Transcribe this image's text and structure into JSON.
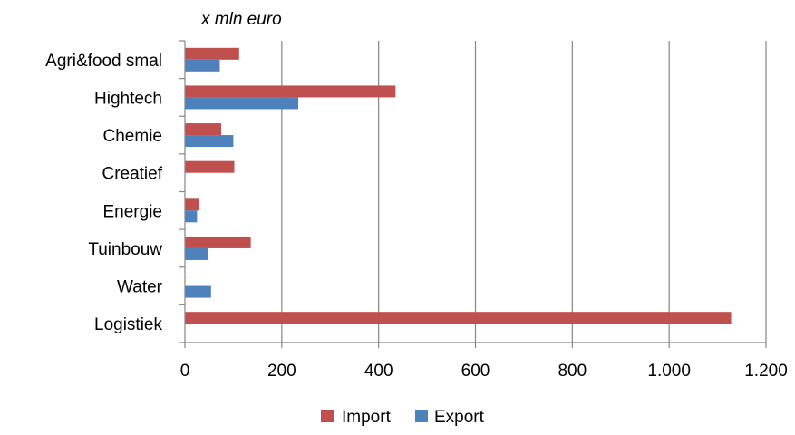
{
  "chart_data": {
    "type": "bar",
    "orientation": "horizontal",
    "title": "x mln euro",
    "categories": [
      "Agri&food smal",
      "Hightech",
      "Chemie",
      "Creatief",
      "Energie",
      "Tuinbouw",
      "Water",
      "Logistiek"
    ],
    "series": [
      {
        "name": "Import",
        "color": "#c0504d",
        "values": [
          112,
          435,
          75,
          102,
          30,
          136,
          null,
          1128
        ]
      },
      {
        "name": "Export",
        "color": "#4f81bd",
        "values": [
          72,
          234,
          100,
          null,
          25,
          47,
          54,
          null
        ]
      }
    ],
    "xlim": [
      0,
      1200
    ],
    "xticks": [
      0,
      200,
      400,
      600,
      800,
      1000,
      1200
    ],
    "xtick_labels": [
      "0",
      "200",
      "400",
      "600",
      "800",
      "1.000",
      "1.200"
    ],
    "grid": "vertical",
    "legend_position": "bottom"
  }
}
